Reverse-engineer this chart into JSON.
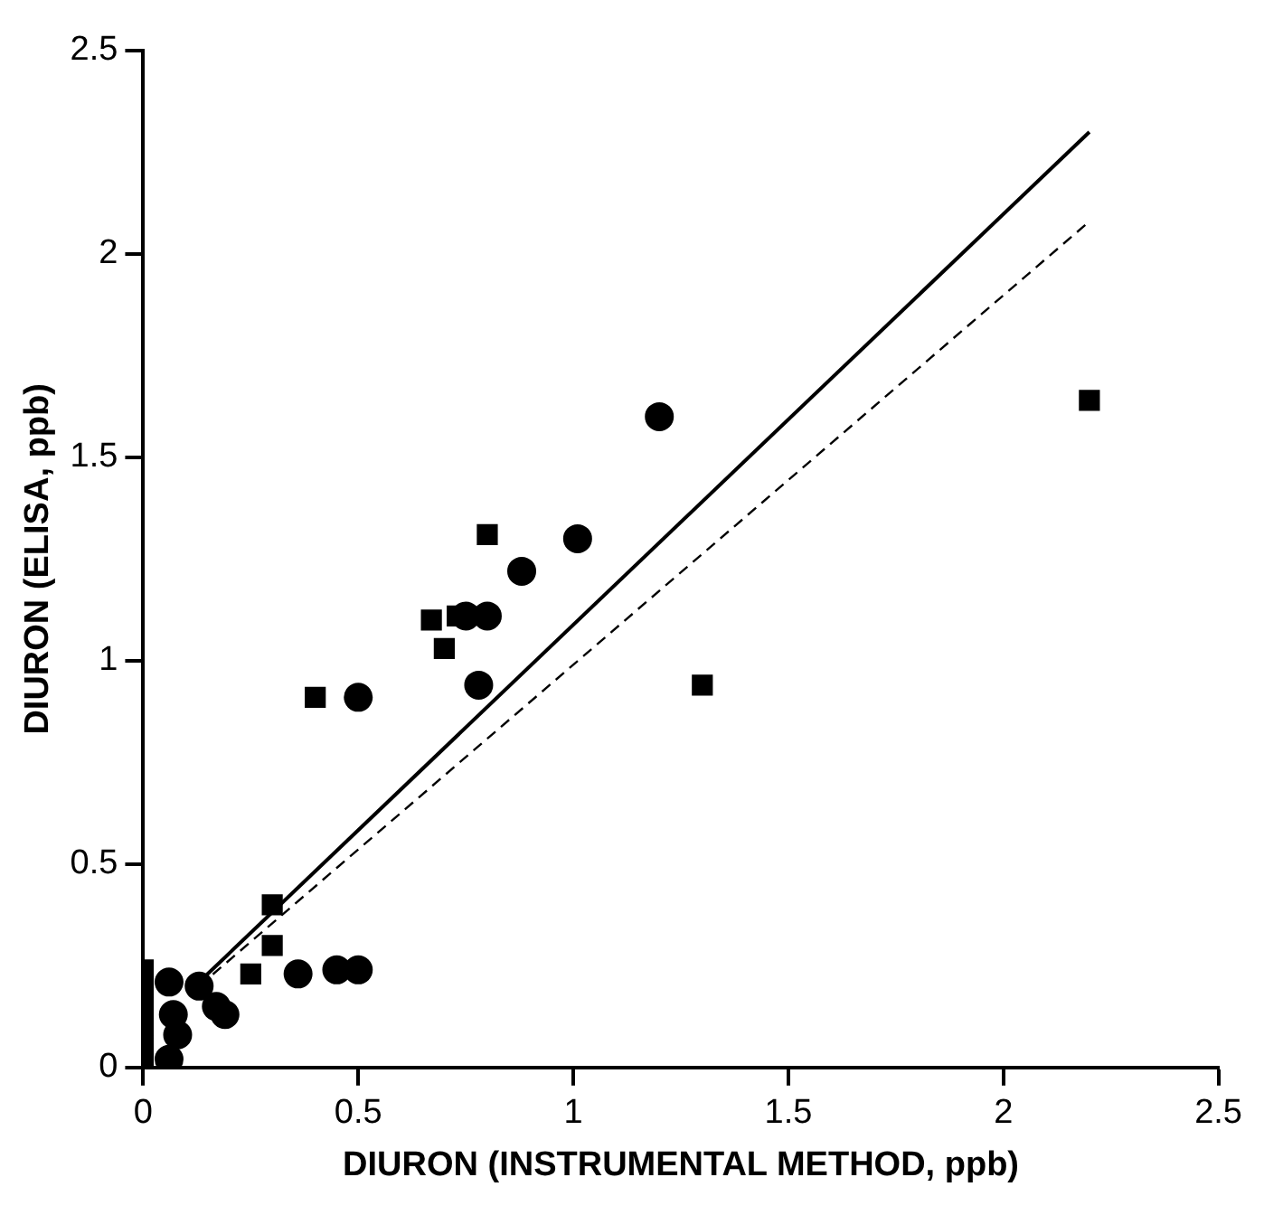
{
  "chart_data": {
    "type": "scatter",
    "xlabel": "DIURON (INSTRUMENTAL METHOD, ppb)",
    "ylabel": "DIURON (ELISA, ppb)",
    "xlim": [
      0,
      2.5
    ],
    "xticks": [
      0,
      0.5,
      1,
      1.5,
      2,
      2.5
    ],
    "ylim": [
      0,
      2.5
    ],
    "yticks": [
      0,
      0.5,
      1,
      1.5,
      2,
      2.5
    ],
    "grid": false,
    "legend": false,
    "series": [
      {
        "color": "#000000",
        "marker": "circle",
        "x": [
          0.06,
          0.13,
          0.17,
          0.19,
          0.07,
          0.08,
          0.06,
          0.36,
          0.45,
          0.5,
          0.5,
          0.78,
          0.75,
          0.8,
          0.88,
          1.01,
          1.2
        ],
        "values": [
          0.21,
          0.2,
          0.15,
          0.13,
          0.13,
          0.08,
          0.02,
          0.23,
          0.24,
          0.24,
          0.91,
          0.94,
          1.11,
          1.11,
          1.22,
          1.3,
          1.6
        ]
      },
      {
        "color": "#000000",
        "marker": "square",
        "x": [
          0,
          0,
          0,
          0,
          0,
          0,
          0.25,
          0.3,
          0.3,
          0.4,
          0.67,
          0.73,
          0.7,
          0.8,
          1.3,
          2.2
        ],
        "values": [
          0.24,
          0.2,
          0.15,
          0.1,
          0.05,
          0.01,
          0.23,
          0.3,
          0.4,
          0.91,
          1.1,
          1.11,
          1.03,
          1.31,
          0.94,
          1.64
        ]
      },
      {
        "type": "line",
        "color": "#000000",
        "line_style": "solid",
        "marker": "none",
        "x": [
          0.13,
          2.2
        ],
        "values": [
          0.21,
          2.3
        ]
      },
      {
        "type": "line",
        "color": "#000000",
        "line_style": "dashed",
        "marker": "none",
        "x": [
          0.13,
          2.2
        ],
        "values": [
          0.2,
          2.08
        ]
      }
    ]
  }
}
